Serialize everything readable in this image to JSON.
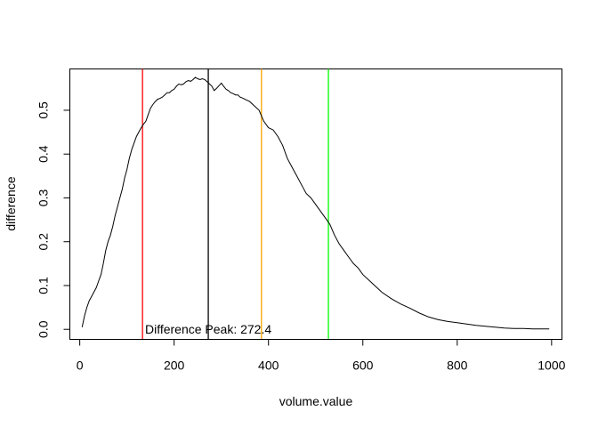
{
  "chart_data": {
    "type": "line",
    "title": "",
    "xlabel": "volume.value",
    "ylabel": "difference",
    "xlim": [
      -21,
      1022
    ],
    "ylim": [
      -0.0229,
      0.5943
    ],
    "xticks": [
      0,
      200,
      400,
      600,
      800,
      1000
    ],
    "xtick_labels": [
      "0",
      "200",
      "400",
      "600",
      "800",
      "1000"
    ],
    "yticks": [
      0.0,
      0.1,
      0.2,
      0.3,
      0.4,
      0.5
    ],
    "ytick_labels": [
      "0.0",
      "0.1",
      "0.2",
      "0.3",
      "0.4",
      "0.5"
    ],
    "grid": false,
    "series": [
      {
        "color": "#000000",
        "x": [
          5,
          10,
          15,
          20,
          25,
          30,
          35,
          40,
          45,
          50,
          55,
          60,
          65,
          70,
          75,
          80,
          85,
          90,
          95,
          100,
          105,
          110,
          115,
          120,
          125,
          130,
          135,
          140,
          145,
          150,
          155,
          160,
          165,
          170,
          175,
          180,
          185,
          190,
          195,
          200,
          205,
          210,
          215,
          220,
          225,
          230,
          235,
          240,
          245,
          250,
          255,
          260,
          265,
          270,
          275,
          280,
          285,
          290,
          295,
          300,
          305,
          310,
          315,
          320,
          325,
          330,
          335,
          340,
          345,
          350,
          360,
          370,
          380,
          390,
          400,
          410,
          420,
          430,
          440,
          450,
          460,
          470,
          480,
          490,
          500,
          510,
          520,
          530,
          540,
          550,
          560,
          570,
          580,
          590,
          600,
          620,
          640,
          660,
          680,
          700,
          720,
          740,
          760,
          780,
          800,
          820,
          840,
          860,
          880,
          900,
          920,
          940,
          960,
          980,
          995
        ],
        "y": [
          0.005,
          0.03,
          0.05,
          0.065,
          0.075,
          0.085,
          0.095,
          0.11,
          0.125,
          0.15,
          0.18,
          0.2,
          0.215,
          0.235,
          0.26,
          0.28,
          0.3,
          0.32,
          0.345,
          0.365,
          0.39,
          0.41,
          0.425,
          0.44,
          0.45,
          0.46,
          0.468,
          0.475,
          0.49,
          0.505,
          0.513,
          0.52,
          0.525,
          0.527,
          0.53,
          0.535,
          0.54,
          0.54,
          0.545,
          0.548,
          0.555,
          0.56,
          0.558,
          0.56,
          0.565,
          0.568,
          0.566,
          0.57,
          0.575,
          0.572,
          0.57,
          0.572,
          0.57,
          0.565,
          0.56,
          0.555,
          0.545,
          0.55,
          0.556,
          0.562,
          0.555,
          0.548,
          0.545,
          0.54,
          0.538,
          0.535,
          0.535,
          0.53,
          0.528,
          0.525,
          0.52,
          0.51,
          0.5,
          0.475,
          0.46,
          0.455,
          0.44,
          0.42,
          0.39,
          0.37,
          0.35,
          0.33,
          0.31,
          0.3,
          0.285,
          0.27,
          0.255,
          0.24,
          0.215,
          0.195,
          0.18,
          0.165,
          0.15,
          0.14,
          0.125,
          0.105,
          0.085,
          0.07,
          0.058,
          0.048,
          0.037,
          0.028,
          0.022,
          0.018,
          0.015,
          0.012,
          0.009,
          0.007,
          0.005,
          0.003,
          0.002,
          0.002,
          0.001,
          0.001,
          0.001
        ]
      }
    ],
    "vlines": [
      {
        "x": 133,
        "color": "#ff0000"
      },
      {
        "x": 272.4,
        "color": "#000000"
      },
      {
        "x": 385,
        "color": "#ffa500"
      },
      {
        "x": 527,
        "color": "#00ff00"
      }
    ],
    "annotations": [
      {
        "text": "Difference Peak: 272.4",
        "x": 272.4,
        "y": 0.0
      }
    ]
  }
}
